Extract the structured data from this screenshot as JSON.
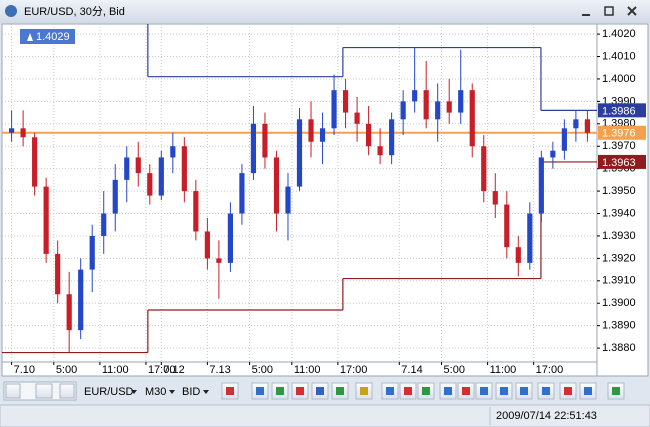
{
  "window_title": "EUR/USD, 30分, Bid",
  "toolbar": {
    "symbol": "EUR/USD",
    "period": "M30",
    "price": "BID"
  },
  "status": "2009/07/14 22:51:43",
  "chart_data": {
    "type": "candlestick",
    "x": [
      0,
      3,
      6,
      9,
      12,
      15,
      18,
      21,
      24,
      27,
      30,
      33,
      36,
      39,
      42,
      45,
      48,
      51,
      54,
      57,
      60,
      63,
      66,
      69,
      72,
      75,
      78,
      81,
      84,
      87,
      90,
      93,
      96,
      99,
      102,
      105,
      108,
      111,
      114,
      117,
      120,
      123,
      126,
      129,
      132,
      135,
      138,
      141,
      144,
      147,
      150
    ],
    "open": [
      1.3976,
      1.3978,
      1.3974,
      1.3952,
      1.3922,
      1.3904,
      1.3888,
      1.3915,
      1.393,
      1.394,
      1.3955,
      1.3965,
      1.3958,
      1.3948,
      1.3965,
      1.397,
      1.395,
      1.3932,
      1.392,
      1.3918,
      1.394,
      1.3958,
      1.398,
      1.3965,
      1.394,
      1.3952,
      1.3982,
      1.3972,
      1.3978,
      1.3995,
      1.3985,
      1.398,
      1.397,
      1.3966,
      1.3982,
      1.399,
      1.3995,
      1.3982,
      1.399,
      1.3985,
      1.3995,
      1.397,
      1.395,
      1.3944,
      1.3925,
      1.3918,
      1.394,
      1.3965,
      1.3968,
      1.3978,
      1.3982
    ],
    "high": [
      1.3986,
      1.3986,
      1.3976,
      1.3956,
      1.3928,
      1.3914,
      1.392,
      1.3935,
      1.395,
      1.3962,
      1.397,
      1.3972,
      1.3962,
      1.3968,
      1.3976,
      1.3974,
      1.3955,
      1.3938,
      1.3928,
      1.3945,
      1.3962,
      1.3988,
      1.3985,
      1.3968,
      1.3958,
      1.3987,
      1.399,
      1.3985,
      1.4002,
      1.4,
      1.3992,
      1.3988,
      1.3978,
      1.3985,
      1.3995,
      1.4014,
      1.4008,
      1.3998,
      1.4,
      1.4013,
      1.3998,
      1.3975,
      1.3958,
      1.395,
      1.393,
      1.3945,
      1.3968,
      1.3972,
      1.3982,
      1.3986,
      1.3986
    ],
    "low": [
      1.3972,
      1.397,
      1.3948,
      1.3918,
      1.39,
      1.3878,
      1.3884,
      1.3905,
      1.3922,
      1.3932,
      1.3945,
      1.3952,
      1.3944,
      1.3946,
      1.3958,
      1.3945,
      1.3928,
      1.3915,
      1.3902,
      1.3914,
      1.3935,
      1.3955,
      1.396,
      1.3932,
      1.3928,
      1.395,
      1.3965,
      1.3962,
      1.3975,
      1.3978,
      1.3972,
      1.3966,
      1.3962,
      1.3962,
      1.3975,
      1.3985,
      1.3978,
      1.3972,
      1.398,
      1.398,
      1.3965,
      1.3945,
      1.3938,
      1.392,
      1.3912,
      1.3915,
      1.3936,
      1.396,
      1.3964,
      1.3972,
      1.3972
    ],
    "close": [
      1.3978,
      1.3974,
      1.3952,
      1.3922,
      1.3904,
      1.3888,
      1.3915,
      1.393,
      1.394,
      1.3955,
      1.3965,
      1.3958,
      1.3948,
      1.3965,
      1.397,
      1.395,
      1.3932,
      1.392,
      1.3918,
      1.394,
      1.3958,
      1.398,
      1.3965,
      1.394,
      1.3952,
      1.3982,
      1.3972,
      1.3978,
      1.3995,
      1.3985,
      1.398,
      1.397,
      1.3966,
      1.3982,
      1.399,
      1.3995,
      1.3982,
      1.399,
      1.3985,
      1.3995,
      1.397,
      1.395,
      1.3944,
      1.3925,
      1.3918,
      1.394,
      1.3965,
      1.3968,
      1.3978,
      1.3982,
      1.3976
    ],
    "up_color": "#2447c8",
    "down_color": "#c81e28",
    "bid": 1.3976,
    "bid_color": "#f5a04a",
    "day_high": {
      "x": [
        -2.5,
        35.5,
        86.3,
        137.9
      ],
      "values": [
        1.4029,
        1.4001,
        1.4014,
        1.3986
      ],
      "color": "#2c3e9c"
    },
    "day_low": {
      "x": [
        -2.5,
        35.5,
        86.3,
        137.9
      ],
      "values": [
        1.3878,
        1.3897,
        1.3911,
        1.3963
      ],
      "color": "#8e1c1c"
    },
    "xlim": [
      -2.5,
      152.5
    ],
    "xticks": [
      {
        "value": 0,
        "label": "7.10"
      },
      {
        "value": 11,
        "label": "5:00"
      },
      {
        "value": 23,
        "label": "11:00"
      },
      {
        "value": 35,
        "label": "17:00"
      },
      {
        "value": 39,
        "label": "7.12"
      },
      {
        "value": 51,
        "label": "7.13"
      },
      {
        "value": 62,
        "label": "5:00"
      },
      {
        "value": 73,
        "label": "11:00"
      },
      {
        "value": 85,
        "label": "17:00"
      },
      {
        "value": 101,
        "label": "7.14"
      },
      {
        "value": 112,
        "label": "5:00"
      },
      {
        "value": 124,
        "label": "11:00"
      },
      {
        "value": 136,
        "label": "17:00"
      }
    ],
    "ylim": [
      1.38738,
      1.40245
    ],
    "yticks": [
      {
        "value": 1.402,
        "label": "1.4020"
      },
      {
        "value": 1.401,
        "label": "1.4010"
      },
      {
        "value": 1.4,
        "label": "1.4000"
      },
      {
        "value": 1.399,
        "label": "1.3990"
      },
      {
        "value": 1.398,
        "label": "1.3980"
      },
      {
        "value": 1.397,
        "label": "1.3970"
      },
      {
        "value": 1.396,
        "label": "1.3960"
      },
      {
        "value": 1.395,
        "label": "1.3950"
      },
      {
        "value": 1.394,
        "label": "1.3940"
      },
      {
        "value": 1.393,
        "label": "1.3930"
      },
      {
        "value": 1.392,
        "label": "1.3920"
      },
      {
        "value": 1.391,
        "label": "1.3910"
      },
      {
        "value": 1.39,
        "label": "1.3900"
      },
      {
        "value": 1.389,
        "label": "1.3890"
      },
      {
        "value": 1.388,
        "label": "1.3880"
      }
    ],
    "grid": true
  }
}
